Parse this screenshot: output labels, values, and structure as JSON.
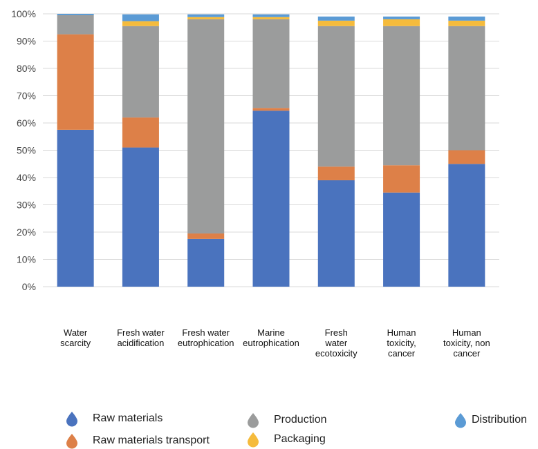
{
  "chart_data": {
    "type": "bar",
    "stacked": true,
    "normalized": true,
    "categories": [
      "Water\nscarcity",
      "Fresh water\nacidification",
      "Fresh water\neutrophication",
      "Marine\neutrophication",
      "Fresh\nwater\necotoxicity",
      "Human\ntoxicity,\ncancer",
      "Human\ntoxicity, non\ncancer"
    ],
    "series": [
      {
        "name": "Raw materials",
        "color": "#4a73be",
        "values": [
          57.5,
          51,
          17.5,
          64.5,
          39,
          34.5,
          45
        ]
      },
      {
        "name": "Raw materials transport",
        "color": "#dd8048",
        "values": [
          35,
          11,
          2,
          1,
          5,
          10,
          5
        ]
      },
      {
        "name": "Production",
        "color": "#9b9c9c",
        "values": [
          7,
          33.5,
          78.5,
          32.5,
          51.5,
          51,
          45.5
        ]
      },
      {
        "name": "Packaging",
        "color": "#f5bb3c",
        "values": [
          0,
          1.8,
          0.8,
          0.8,
          2,
          2.5,
          2
        ]
      },
      {
        "name": "Distribution",
        "color": "#5b9bd5",
        "values": [
          0.5,
          2.5,
          1,
          1,
          1.5,
          1,
          1.5
        ]
      }
    ],
    "yticks": [
      "0%",
      "10%",
      "20%",
      "30%",
      "40%",
      "50%",
      "60%",
      "70%",
      "80%",
      "90%",
      "100%"
    ],
    "ylim": [
      0,
      100
    ],
    "grid": true,
    "legend_position": "bottom"
  }
}
